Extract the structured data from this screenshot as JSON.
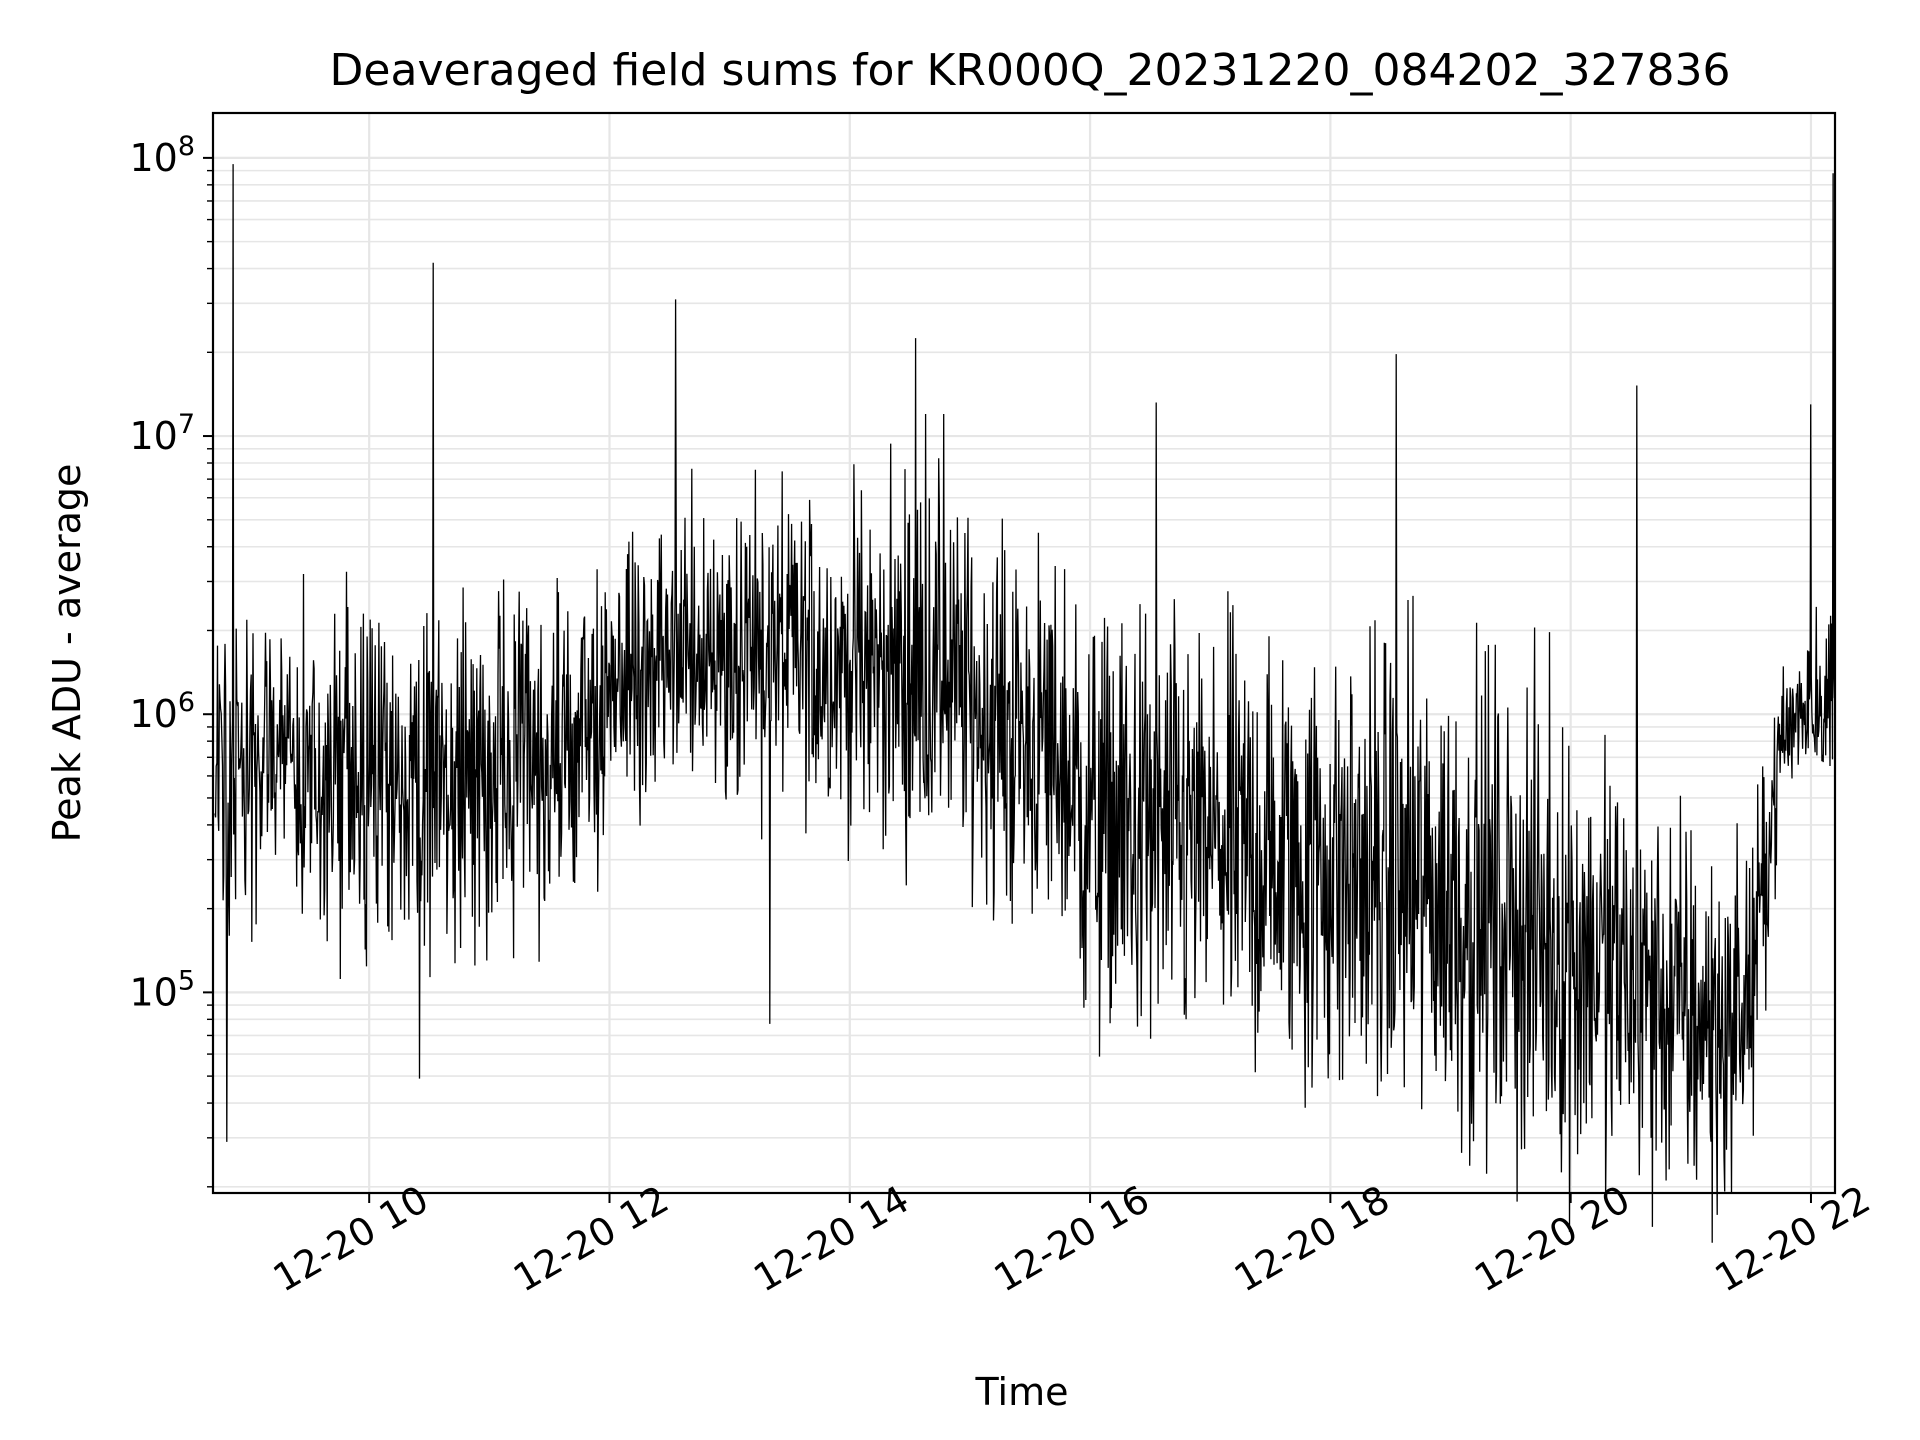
{
  "chart_data": {
    "type": "line",
    "title": "Deaveraged field sums for KR000Q_20231220_084202_327836",
    "xlabel": "Time",
    "ylabel": "Peak ADU - average",
    "x_range": [
      "2023-12-20 08:42",
      "2023-12-20 22:12"
    ],
    "y_scale": "log",
    "ylim": [
      19000,
      145000000
    ],
    "grid": true,
    "legend": "none",
    "line_color": "#000000",
    "grid_color": "#e6e6e6",
    "xticks": [
      {
        "t": "2023-12-20 10:00",
        "label": "12-20 10"
      },
      {
        "t": "2023-12-20 12:00",
        "label": "12-20 12"
      },
      {
        "t": "2023-12-20 14:00",
        "label": "12-20 14"
      },
      {
        "t": "2023-12-20 16:00",
        "label": "12-20 16"
      },
      {
        "t": "2023-12-20 18:00",
        "label": "12-20 18"
      },
      {
        "t": "2023-12-20 20:00",
        "label": "12-20 20"
      },
      {
        "t": "2023-12-20 22:00",
        "label": "12-20 22"
      }
    ],
    "yticks": [
      {
        "value": 100000,
        "base": "10",
        "exp": "5"
      },
      {
        "value": 1000000,
        "base": "10",
        "exp": "6"
      },
      {
        "value": 10000000,
        "base": "10",
        "exp": "7"
      },
      {
        "value": 100000000,
        "base": "10",
        "exp": "8"
      }
    ],
    "envelope": [
      {
        "t": "2023-12-20 08:45",
        "center": 600000,
        "spread": 0.3
      },
      {
        "t": "2023-12-20 09:15",
        "center": 700000,
        "spread": 0.3
      },
      {
        "t": "2023-12-20 10:00",
        "center": 500000,
        "spread": 0.38
      },
      {
        "t": "2023-12-20 11:00",
        "center": 600000,
        "spread": 0.35
      },
      {
        "t": "2023-12-20 11:45",
        "center": 700000,
        "spread": 0.33
      },
      {
        "t": "2023-12-20 12:00",
        "center": 1300000,
        "spread": 0.28
      },
      {
        "t": "2023-12-20 13:00",
        "center": 1800000,
        "spread": 0.32
      },
      {
        "t": "2023-12-20 14:00",
        "center": 1500000,
        "spread": 0.35
      },
      {
        "t": "2023-12-20 14:45",
        "center": 1400000,
        "spread": 0.38
      },
      {
        "t": "2023-12-20 15:15",
        "center": 900000,
        "spread": 0.38
      },
      {
        "t": "2023-12-20 15:45",
        "center": 700000,
        "spread": 0.4
      },
      {
        "t": "2023-12-20 16:00",
        "center": 400000,
        "spread": 0.45
      },
      {
        "t": "2023-12-20 17:00",
        "center": 330000,
        "spread": 0.45
      },
      {
        "t": "2023-12-20 18:30",
        "center": 250000,
        "spread": 0.5
      },
      {
        "t": "2023-12-20 19:30",
        "center": 180000,
        "spread": 0.5
      },
      {
        "t": "2023-12-20 20:30",
        "center": 110000,
        "spread": 0.45
      },
      {
        "t": "2023-12-20 21:15",
        "center": 70000,
        "spread": 0.38
      },
      {
        "t": "2023-12-20 21:30",
        "center": 100000,
        "spread": 0.3
      },
      {
        "t": "2023-12-20 21:45",
        "center": 800000,
        "spread": 0.15
      },
      {
        "t": "2023-12-20 22:00",
        "center": 1200000,
        "spread": 0.18
      },
      {
        "t": "2023-12-20 22:12",
        "center": 1100000,
        "spread": 0.2
      }
    ],
    "spikes": [
      {
        "t": "2023-12-20 08:52",
        "y": 95000000
      },
      {
        "t": "2023-12-20 10:32",
        "y": 42000000
      },
      {
        "t": "2023-12-20 12:33",
        "y": 31000000
      },
      {
        "t": "2023-12-20 14:33",
        "y": 22500000
      },
      {
        "t": "2023-12-20 14:38",
        "y": 12000000
      },
      {
        "t": "2023-12-20 14:47",
        "y": 12000000
      },
      {
        "t": "2023-12-20 16:33",
        "y": 13200000
      },
      {
        "t": "2023-12-20 18:33",
        "y": 19700000
      },
      {
        "t": "2023-12-20 20:33",
        "y": 15200000
      },
      {
        "t": "2023-12-20 22:00",
        "y": 13000000
      },
      {
        "t": "2023-12-20 22:11",
        "y": 88000000
      }
    ],
    "dips": [
      {
        "t": "2023-12-20 08:49",
        "y": 29000
      },
      {
        "t": "2023-12-20 10:25",
        "y": 49000
      },
      {
        "t": "2023-12-20 13:20",
        "y": 77000
      }
    ]
  }
}
